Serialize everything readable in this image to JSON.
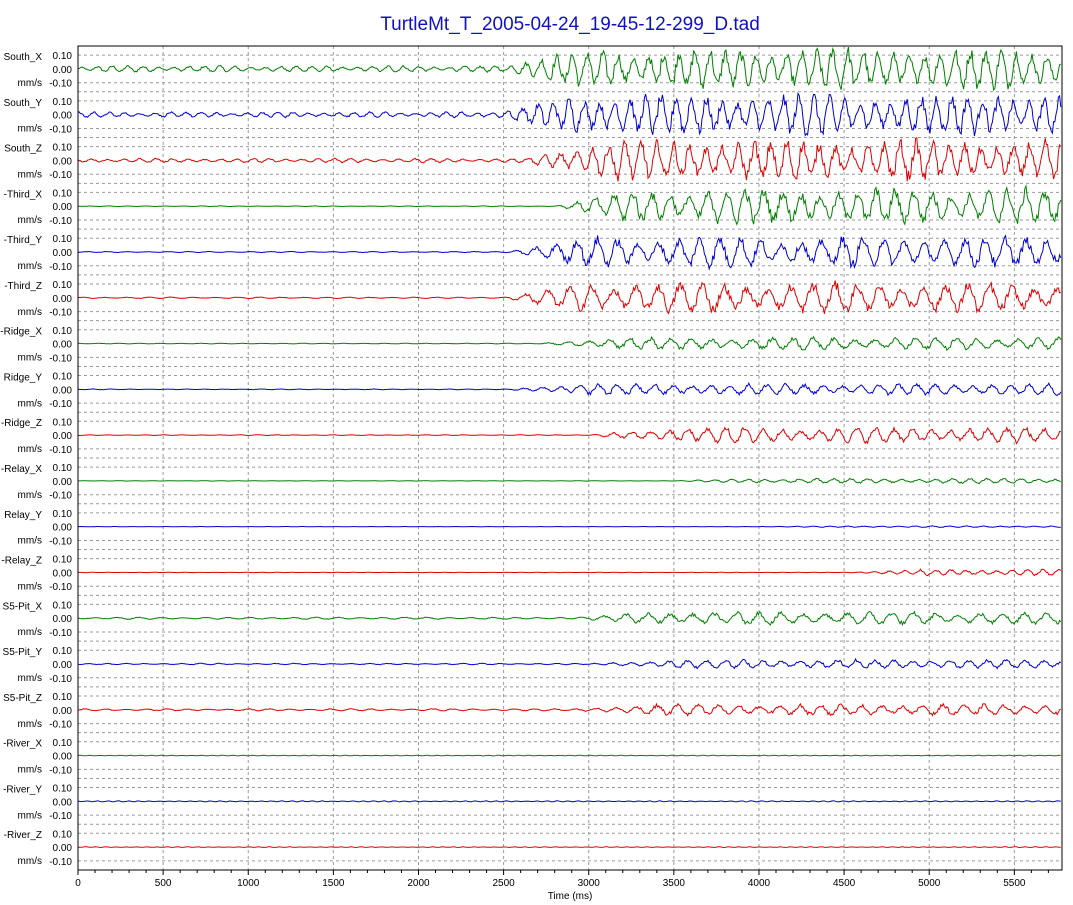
{
  "chart_data": {
    "type": "line",
    "title": "TurtleMt_T_2005-04-24_19-45-12-299_D.tad",
    "xlabel": "Time (ms)",
    "xlim": [
      0,
      5780
    ],
    "xticks": [
      0,
      500,
      1000,
      1500,
      2000,
      2500,
      3000,
      3500,
      4000,
      4500,
      5000,
      5500
    ],
    "xtick_labels": [
      "0",
      "500",
      "1000",
      "1500",
      "2000",
      "2500",
      "3000",
      "3500",
      "4000",
      "4500",
      "5000",
      "5500"
    ],
    "ylim": [
      -0.1,
      0.1
    ],
    "yticks": [
      0.1,
      0.0,
      -0.1
    ],
    "ytick_labels": [
      "0.10",
      "0.00",
      "-0.10"
    ],
    "unit": "mm/s",
    "grid": true,
    "colors": {
      "X": "#008000",
      "Y": "#0000d0",
      "Z": "#e00000"
    },
    "series": [
      {
        "name": "South_X",
        "component": "X",
        "onset": 2500,
        "amp_pre": 0.018,
        "amp_post": 0.16,
        "period": 90
      },
      {
        "name": "South_Y",
        "component": "Y",
        "onset": 2450,
        "amp_pre": 0.016,
        "amp_post": 0.16,
        "period": 90
      },
      {
        "name": "South_Z",
        "component": "Z",
        "onset": 2600,
        "amp_pre": 0.012,
        "amp_post": 0.16,
        "period": 95
      },
      {
        "name": "-Third_X",
        "component": "X",
        "onset": 2800,
        "amp_pre": 0.002,
        "amp_post": 0.14,
        "period": 110
      },
      {
        "name": "-Third_Y",
        "component": "Y",
        "onset": 2500,
        "amp_pre": 0.003,
        "amp_post": 0.12,
        "period": 120
      },
      {
        "name": "-Third_Z",
        "component": "Z",
        "onset": 2500,
        "amp_pre": 0.004,
        "amp_post": 0.12,
        "period": 130
      },
      {
        "name": "-Ridge_X",
        "component": "X",
        "onset": 2700,
        "amp_pre": 0.002,
        "amp_post": 0.05,
        "period": 120
      },
      {
        "name": "Ridge_Y",
        "component": "Y",
        "onset": 2500,
        "amp_pre": 0.002,
        "amp_post": 0.045,
        "period": 110
      },
      {
        "name": "-Ridge_Z",
        "component": "Z",
        "onset": 3000,
        "amp_pre": 0.002,
        "amp_post": 0.06,
        "period": 110
      },
      {
        "name": "-Relay_X",
        "component": "X",
        "onset": 3500,
        "amp_pre": 0.001,
        "amp_post": 0.02,
        "period": 100
      },
      {
        "name": "Relay_Y",
        "component": "Y",
        "onset": 4000,
        "amp_pre": 0.001,
        "amp_post": 0.006,
        "period": 100
      },
      {
        "name": "-Relay_Z",
        "component": "Z",
        "onset": 4500,
        "amp_pre": 0.001,
        "amp_post": 0.025,
        "period": 90
      },
      {
        "name": "S5-Pit_X",
        "component": "X",
        "onset": 2900,
        "amp_pre": 0.006,
        "amp_post": 0.05,
        "period": 130
      },
      {
        "name": "S5-Pit_Y",
        "component": "Y",
        "onset": 3000,
        "amp_pre": 0.004,
        "amp_post": 0.035,
        "period": 110
      },
      {
        "name": "S5-Pit_Z",
        "component": "Z",
        "onset": 2900,
        "amp_pre": 0.006,
        "amp_post": 0.045,
        "period": 120
      },
      {
        "name": "-River_X",
        "component": "X",
        "onset": 5000,
        "amp_pre": 0.002,
        "amp_post": 0.003,
        "period": 60
      },
      {
        "name": "-River_Y",
        "component": "Y",
        "onset": 5000,
        "amp_pre": 0.003,
        "amp_post": 0.004,
        "period": 60
      },
      {
        "name": "-River_Z",
        "component": "Z",
        "onset": 5000,
        "amp_pre": 0.002,
        "amp_post": 0.003,
        "period": 60
      }
    ]
  }
}
